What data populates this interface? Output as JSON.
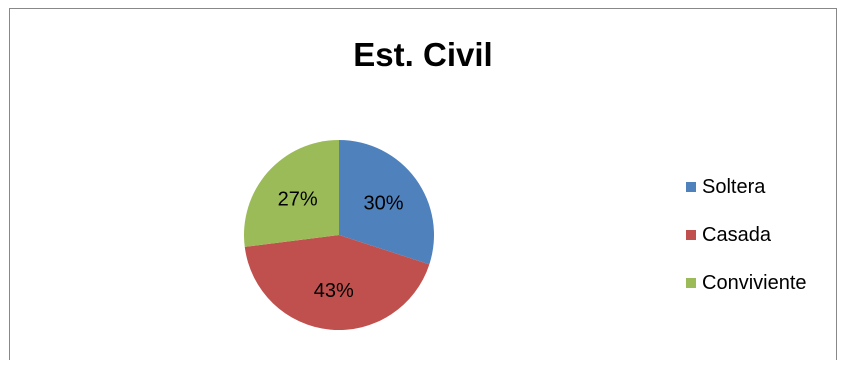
{
  "chart_data": {
    "type": "pie",
    "title": "Est. Civil",
    "categories": [
      "Soltera",
      "Casada",
      "Conviviente"
    ],
    "values": [
      30,
      43,
      27
    ],
    "labels": [
      "30%",
      "43%",
      "27%"
    ],
    "colors": [
      "#4F81BD",
      "#C0504D",
      "#9BBB59"
    ],
    "legend_position": "right"
  }
}
